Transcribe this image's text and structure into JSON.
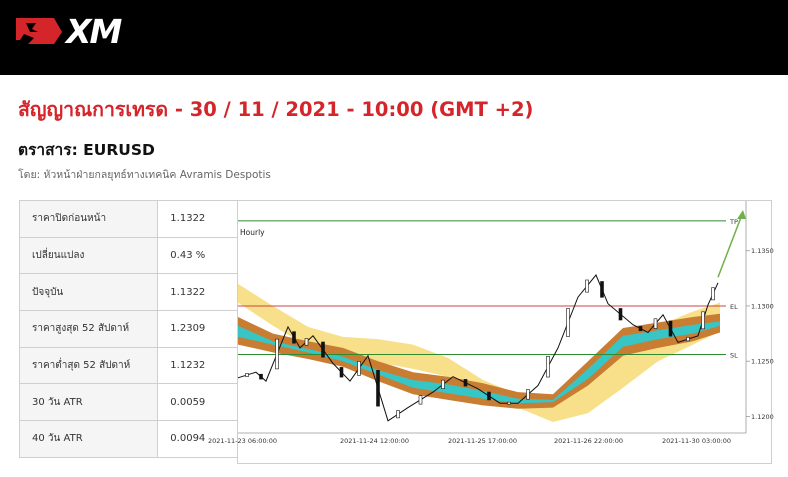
{
  "header": {
    "logo_text": "XM"
  },
  "signal_title": "สัญญาณการเทรด - 30 / 11 / 2021 - 10:00 (GMT +2)",
  "instrument_label": "ตราสาร: EURUSD",
  "author": "โดย: หัวหน้าฝ่ายกลยุทธ์ทางเทคนิค Avramis Despotis",
  "stats": [
    {
      "label": "ราคาปิดก่อนหน้า",
      "value": "1.1322"
    },
    {
      "label": "เปลี่ยนแปลง",
      "value": "0.43 %"
    },
    {
      "label": "ปัจจุบัน",
      "value": "1.1322"
    },
    {
      "label": "ราคาสูงสุด 52 สัปดาห์",
      "value": "1.2309"
    },
    {
      "label": "ราคาต่ำสุด 52 สัปดาห์",
      "value": "1.1232"
    },
    {
      "label": "30 วัน ATR",
      "value": "0.0059"
    },
    {
      "label": "40 วัน ATR",
      "value": "0.0094"
    }
  ],
  "chart_data": {
    "type": "line",
    "title": "Hourly",
    "x_tick_labels": [
      "2021-11-23 06:00:00",
      "2021-11-24 12:00:00",
      "2021-11-25 17:00:00",
      "2021-11-26 22:00:00",
      "2021-11-30 03:00:00"
    ],
    "y_tick_labels": [
      "1.1350",
      "1.1300",
      "1.1250",
      "1.1200"
    ],
    "ylim": [
      1.1185,
      1.1395
    ],
    "levels": [
      {
        "name": "TP",
        "value": 1.1377,
        "color": "#2e8b2e"
      },
      {
        "name": "EL",
        "value": 1.13,
        "color": "#cc4444"
      },
      {
        "name": "SL",
        "value": 1.1256,
        "color": "#2e8b2e"
      }
    ],
    "price_path": [
      {
        "x": 0,
        "y": 1.1235
      },
      {
        "x": 18,
        "y": 1.124
      },
      {
        "x": 28,
        "y": 1.1232
      },
      {
        "x": 50,
        "y": 1.1281
      },
      {
        "x": 62,
        "y": 1.1262
      },
      {
        "x": 75,
        "y": 1.1273
      },
      {
        "x": 95,
        "y": 1.1248
      },
      {
        "x": 112,
        "y": 1.1232
      },
      {
        "x": 130,
        "y": 1.1255
      },
      {
        "x": 150,
        "y": 1.1196
      },
      {
        "x": 170,
        "y": 1.1208
      },
      {
        "x": 195,
        "y": 1.1222
      },
      {
        "x": 215,
        "y": 1.1236
      },
      {
        "x": 240,
        "y": 1.1225
      },
      {
        "x": 262,
        "y": 1.1212
      },
      {
        "x": 280,
        "y": 1.1212
      },
      {
        "x": 300,
        "y": 1.1228
      },
      {
        "x": 320,
        "y": 1.1262
      },
      {
        "x": 340,
        "y": 1.1308
      },
      {
        "x": 358,
        "y": 1.1328
      },
      {
        "x": 370,
        "y": 1.1302
      },
      {
        "x": 395,
        "y": 1.1283
      },
      {
        "x": 410,
        "y": 1.1276
      },
      {
        "x": 425,
        "y": 1.1292
      },
      {
        "x": 440,
        "y": 1.1267
      },
      {
        "x": 460,
        "y": 1.1273
      },
      {
        "x": 470,
        "y": 1.1301
      },
      {
        "x": 480,
        "y": 1.1321
      }
    ],
    "projection": [
      {
        "x": 480,
        "y": 1.1326
      },
      {
        "x": 505,
        "y": 1.1385
      }
    ],
    "bands": [
      {
        "name": "outer",
        "color": "#f8e08a",
        "upper": [
          1.132,
          1.13,
          1.1281,
          1.1272,
          1.127,
          1.1265,
          1.1253,
          1.1233,
          1.122,
          1.1211,
          1.1236,
          1.1263,
          1.1282,
          1.1295,
          1.1303
        ],
        "lower": [
          1.1303,
          1.1282,
          1.1263,
          1.1253,
          1.1249,
          1.1243,
          1.1236,
          1.1224,
          1.1208,
          1.1195,
          1.1203,
          1.1226,
          1.125,
          1.1265,
          1.1277
        ]
      },
      {
        "name": "middle",
        "color": "#c87d32",
        "upper": [
          1.129,
          1.1275,
          1.1268,
          1.1262,
          1.125,
          1.124,
          1.1236,
          1.123,
          1.1222,
          1.122,
          1.125,
          1.128,
          1.1285,
          1.129,
          1.1293
        ],
        "lower": [
          1.1265,
          1.1258,
          1.1252,
          1.1245,
          1.1232,
          1.122,
          1.1215,
          1.121,
          1.1207,
          1.1208,
          1.1228,
          1.1255,
          1.1262,
          1.1268,
          1.1276
        ]
      },
      {
        "name": "inner",
        "color": "#38c5c5",
        "upper": [
          1.1282,
          1.1268,
          1.1261,
          1.1254,
          1.1242,
          1.1233,
          1.1229,
          1.1223,
          1.1216,
          1.1215,
          1.1243,
          1.1273,
          1.1278,
          1.1283,
          1.1286
        ],
        "lower": [
          1.1272,
          1.1265,
          1.1258,
          1.125,
          1.1238,
          1.1226,
          1.1221,
          1.1216,
          1.1212,
          1.1213,
          1.1234,
          1.1263,
          1.127,
          1.1275,
          1.1282
        ]
      }
    ],
    "band_x": [
      0,
      35,
      70,
      105,
      140,
      175,
      210,
      245,
      280,
      315,
      350,
      385,
      420,
      455,
      482
    ]
  }
}
